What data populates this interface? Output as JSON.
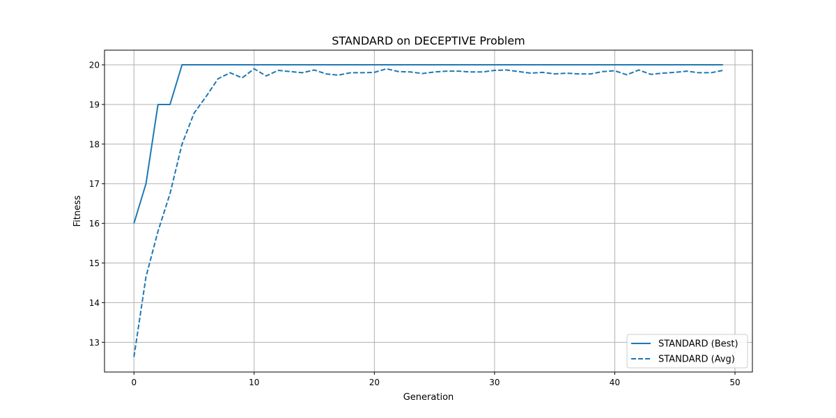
{
  "chart_data": {
    "type": "line",
    "title": "STANDARD on DECEPTIVE Problem",
    "xlabel": "Generation",
    "ylabel": "Fitness",
    "xlim": [
      -2.45,
      51.45
    ],
    "ylim": [
      12.25,
      20.37
    ],
    "xticks": [
      0,
      10,
      20,
      30,
      40,
      50
    ],
    "yticks": [
      13,
      14,
      15,
      16,
      17,
      18,
      19,
      20
    ],
    "grid": true,
    "legend_position": "lower-right",
    "x": [
      0,
      1,
      2,
      3,
      4,
      5,
      6,
      7,
      8,
      9,
      10,
      11,
      12,
      13,
      14,
      15,
      16,
      17,
      18,
      19,
      20,
      21,
      22,
      23,
      24,
      25,
      26,
      27,
      28,
      29,
      30,
      31,
      32,
      33,
      34,
      35,
      36,
      37,
      38,
      39,
      40,
      41,
      42,
      43,
      44,
      45,
      46,
      47,
      48,
      49
    ],
    "series": [
      {
        "name": "STANDARD (Best)",
        "style": "solid",
        "color": "#1f77b4",
        "values": [
          16,
          17,
          19,
          19,
          20,
          20,
          20,
          20,
          20,
          20,
          20,
          20,
          20,
          20,
          20,
          20,
          20,
          20,
          20,
          20,
          20,
          20,
          20,
          20,
          20,
          20,
          20,
          20,
          20,
          20,
          20,
          20,
          20,
          20,
          20,
          20,
          20,
          20,
          20,
          20,
          20,
          20,
          20,
          20,
          20,
          20,
          20,
          20,
          20,
          20
        ]
      },
      {
        "name": "STANDARD (Avg)",
        "style": "dashed",
        "color": "#1f77b4",
        "values": [
          12.63,
          14.65,
          15.8,
          16.75,
          18.0,
          18.78,
          19.2,
          19.65,
          19.8,
          19.67,
          19.9,
          19.72,
          19.86,
          19.83,
          19.8,
          19.87,
          19.77,
          19.74,
          19.8,
          19.8,
          19.81,
          19.9,
          19.83,
          19.82,
          19.78,
          19.82,
          19.84,
          19.84,
          19.82,
          19.82,
          19.86,
          19.87,
          19.83,
          19.79,
          19.81,
          19.77,
          19.79,
          19.77,
          19.77,
          19.83,
          19.85,
          19.75,
          19.87,
          19.76,
          19.79,
          19.81,
          19.84,
          19.8,
          19.8,
          19.86
        ]
      }
    ]
  }
}
